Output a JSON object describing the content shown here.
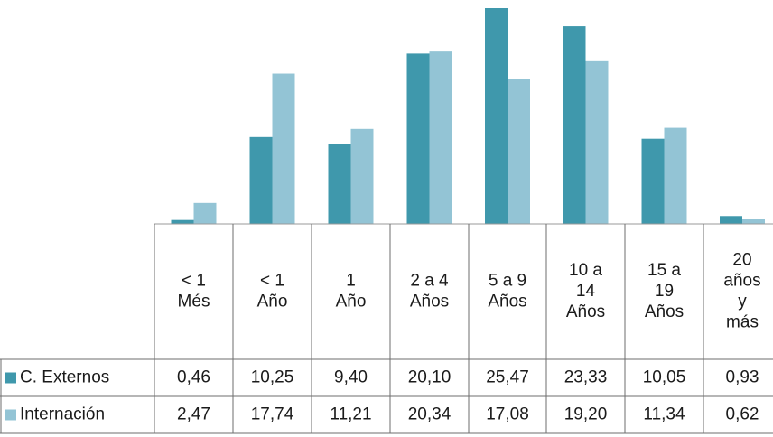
{
  "chart_data": {
    "type": "bar",
    "categories": [
      [
        "< 1",
        "Més"
      ],
      [
        "< 1",
        "Año"
      ],
      [
        "1",
        "Año"
      ],
      [
        "2 a 4",
        "Años"
      ],
      [
        "5 a 9",
        "Años"
      ],
      [
        "10 a",
        "14",
        "Años"
      ],
      [
        "15 a",
        "19",
        "Años"
      ],
      [
        "20",
        "años",
        "y",
        "más"
      ]
    ],
    "series": [
      {
        "name": "C. Externos",
        "color": "#3f98ac",
        "values": [
          0.46,
          10.25,
          9.4,
          20.1,
          25.47,
          23.33,
          10.05,
          0.93
        ],
        "labels": [
          "0,46",
          "10,25",
          "9,40",
          "20,10",
          "25,47",
          "23,33",
          "10,05",
          "0,93"
        ]
      },
      {
        "name": "Internación",
        "color": "#93c4d5",
        "values": [
          2.47,
          17.74,
          11.21,
          20.34,
          17.08,
          19.2,
          11.34,
          0.62
        ],
        "labels": [
          "2,47",
          "17,74",
          "11,21",
          "20,34",
          "17,08",
          "19,20",
          "11,34",
          "0,62"
        ]
      }
    ],
    "title": "",
    "xlabel": "",
    "ylabel": "",
    "ylim": [
      0,
      26
    ],
    "grid": false,
    "legend": "data-table"
  }
}
